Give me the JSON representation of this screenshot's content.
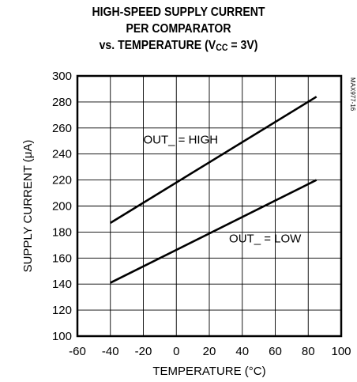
{
  "chart_data": {
    "type": "line",
    "title_lines": [
      "HIGH-SPEED SUPPLY CURRENT",
      "PER COMPARATOR"
    ],
    "title_line3_prefix": "vs. TEMPERATURE (V",
    "title_line3_sub": "CC",
    "title_line3_suffix": " = 3V)",
    "xlabel": "TEMPERATURE (°C)",
    "ylabel": "SUPPLY CURRENT (μA)",
    "watermark": "MAX977-16",
    "xlim": [
      -60,
      100
    ],
    "ylim": [
      100,
      300
    ],
    "x_ticks": [
      -60,
      -40,
      -20,
      0,
      20,
      40,
      60,
      80,
      100
    ],
    "y_ticks": [
      100,
      120,
      140,
      160,
      180,
      200,
      220,
      240,
      260,
      280,
      300
    ],
    "grid": true,
    "series": [
      {
        "name": "OUT_ = HIGH",
        "x": [
          -40,
          85
        ],
        "y": [
          187,
          284
        ]
      },
      {
        "name": "OUT_ = LOW",
        "x": [
          -40,
          85
        ],
        "y": [
          141,
          220
        ]
      }
    ],
    "annotations": [
      {
        "text": "OUT_ = HIGH",
        "x": -20,
        "y": 248
      },
      {
        "text": "OUT_ = LOW",
        "x": 32,
        "y": 172
      }
    ]
  }
}
